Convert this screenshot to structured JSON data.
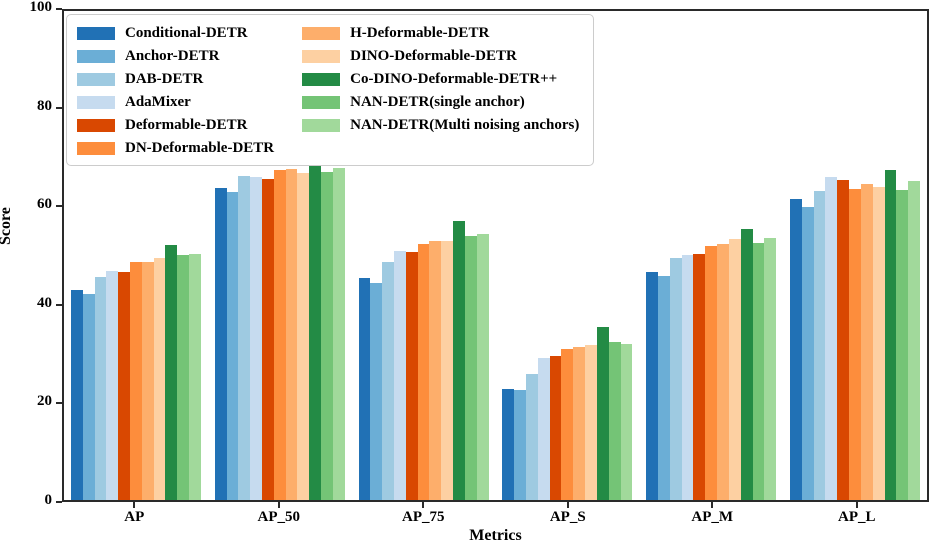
{
  "chart_data": {
    "type": "bar",
    "title": "",
    "xlabel": "Metrics",
    "ylabel": "Score",
    "ylim": [
      0,
      100
    ],
    "yticks": [
      0,
      20,
      40,
      60,
      80,
      100
    ],
    "grid": false,
    "legend_position": "upper left",
    "categories": [
      "AP",
      "AP_50",
      "AP_75",
      "AP_S",
      "AP_M",
      "AP_L"
    ],
    "series": [
      {
        "name": "Conditional-DETR",
        "color": "#2171b5",
        "values": [
          43.0,
          63.9,
          45.4,
          22.7,
          46.6,
          61.5
        ]
      },
      {
        "name": "Anchor-DETR",
        "color": "#6baed6",
        "values": [
          42.1,
          63.0,
          44.4,
          22.4,
          45.9,
          60.0
        ]
      },
      {
        "name": "DAB-DETR",
        "color": "#9ecae1",
        "values": [
          45.6,
          66.2,
          48.7,
          25.8,
          49.4,
          63.1
        ]
      },
      {
        "name": "AdaMixer",
        "color": "#c6dbef",
        "values": [
          46.8,
          66.0,
          50.9,
          29.0,
          50.2,
          66.0
        ]
      },
      {
        "name": "Deformable-DETR",
        "color": "#d94801",
        "values": [
          46.7,
          65.6,
          50.8,
          29.4,
          50.4,
          65.5
        ]
      },
      {
        "name": "DN-Deformable-DETR",
        "color": "#fd8d3c",
        "values": [
          48.6,
          67.5,
          52.3,
          30.8,
          51.9,
          63.7
        ]
      },
      {
        "name": "H-Deformable-DETR",
        "color": "#fdae6b",
        "values": [
          48.7,
          67.7,
          53.0,
          31.2,
          52.4,
          64.6
        ]
      },
      {
        "name": "DINO-Deformable-DETR",
        "color": "#fdd0a2",
        "values": [
          49.4,
          66.8,
          52.9,
          31.6,
          53.3,
          64.1
        ]
      },
      {
        "name": "Co-DINO-Deformable-DETR++",
        "color": "#238b45",
        "values": [
          52.1,
          69.4,
          57.1,
          35.3,
          55.5,
          67.4
        ]
      },
      {
        "name": "NAN-DETR(single anchor)",
        "color": "#74c476",
        "values": [
          50.1,
          67.1,
          54.0,
          32.4,
          52.6,
          63.4
        ]
      },
      {
        "name": "NAN-DETR(Multi noising anchors)",
        "color": "#a1d99b",
        "values": [
          50.4,
          67.8,
          54.4,
          31.9,
          53.6,
          65.3
        ]
      }
    ],
    "legend_columns": [
      6,
      5
    ]
  },
  "axes": {
    "x_title": "Metrics",
    "y_title": "Score"
  }
}
